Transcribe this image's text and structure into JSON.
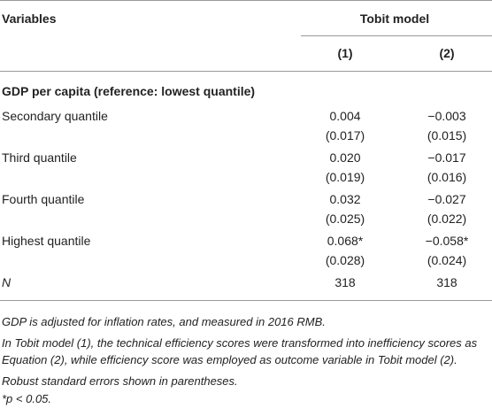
{
  "table": {
    "header": {
      "variables": "Variables",
      "group": "Tobit model",
      "columns": [
        "(1)",
        "(2)"
      ]
    },
    "section": "GDP per capita (reference: lowest quantile)",
    "rows": [
      {
        "label": "Secondary quantile",
        "values": [
          "0.004",
          "−0.003"
        ],
        "errors": [
          "(0.017)",
          "(0.015)"
        ]
      },
      {
        "label": "Third quantile",
        "values": [
          "0.020",
          "−0.017"
        ],
        "errors": [
          "(0.019)",
          "(0.016)"
        ]
      },
      {
        "label": "Fourth quantile",
        "values": [
          "0.032",
          "−0.027"
        ],
        "errors": [
          "(0.025)",
          "(0.022)"
        ]
      },
      {
        "label": "Highest quantile",
        "values": [
          "0.068*",
          "−0.058*"
        ],
        "errors": [
          "(0.028)",
          "(0.024)"
        ]
      }
    ],
    "n_row": {
      "label": "N",
      "values": [
        "318",
        "318"
      ]
    }
  },
  "notes": [
    "GDP is adjusted for inflation rates, and measured in 2016 RMB.",
    "In Tobit model (1), the technical efficiency scores were transformed into inefficiency scores as Equation (2), while efficiency score was employed as outcome variable in Tobit model (2).",
    "Robust standard errors shown in parentheses.",
    "*p < 0.05."
  ]
}
